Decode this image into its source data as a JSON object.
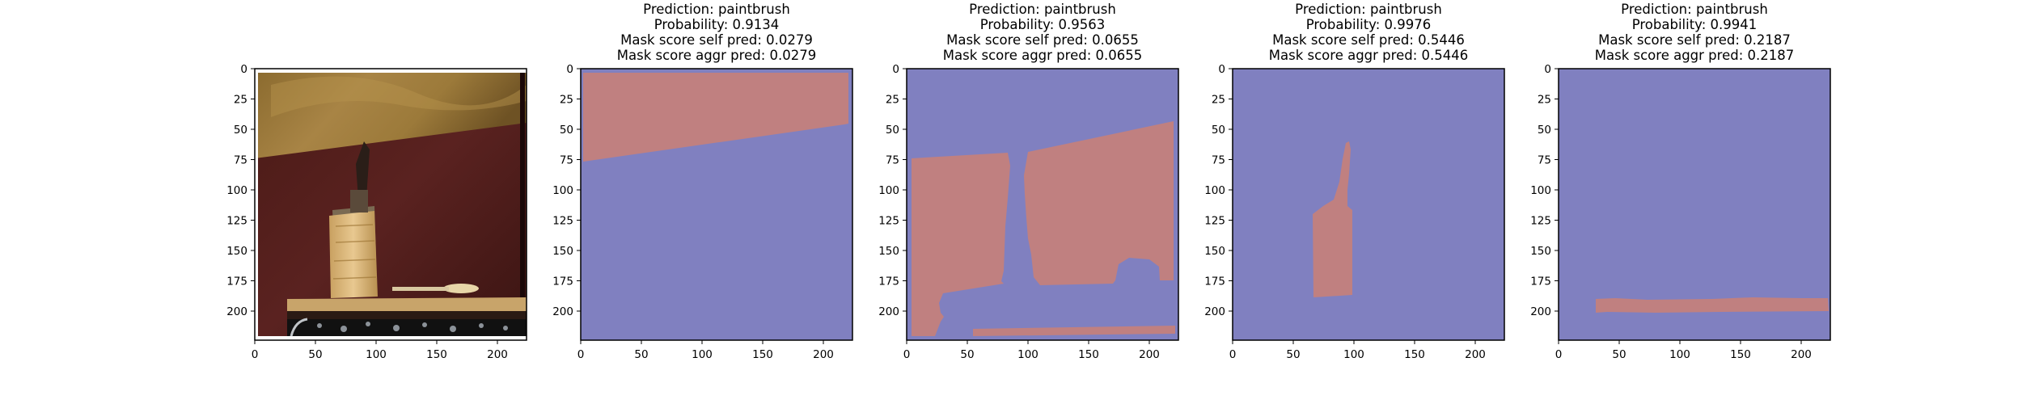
{
  "figure": {
    "panels": [
      {
        "kind": "photo",
        "title_lines": [],
        "x_ticks": [
          "0",
          "50",
          "100",
          "150",
          "200"
        ],
        "y_ticks": [
          "0",
          "25",
          "50",
          "75",
          "100",
          "125",
          "150",
          "175",
          "200"
        ]
      },
      {
        "kind": "mask",
        "title_lines": [
          "Prediction: paintbrush",
          "Probability: 0.9134",
          "Mask score self pred: 0.0279",
          "Mask score aggr pred: 0.0279"
        ],
        "x_ticks": [
          "0",
          "50",
          "100",
          "150",
          "200"
        ],
        "y_ticks": [
          "0",
          "25",
          "50",
          "75",
          "100",
          "125",
          "150",
          "175",
          "200"
        ]
      },
      {
        "kind": "mask",
        "title_lines": [
          "Prediction: paintbrush",
          "Probability: 0.9563",
          "Mask score self pred: 0.0655",
          "Mask score aggr pred: 0.0655"
        ],
        "x_ticks": [
          "0",
          "50",
          "100",
          "150",
          "200"
        ],
        "y_ticks": [
          "0",
          "25",
          "50",
          "75",
          "100",
          "125",
          "150",
          "175",
          "200"
        ]
      },
      {
        "kind": "mask",
        "title_lines": [
          "Prediction: paintbrush",
          "Probability: 0.9976",
          "Mask score self pred: 0.5446",
          "Mask score aggr pred: 0.5446"
        ],
        "x_ticks": [
          "0",
          "50",
          "100",
          "150",
          "200"
        ],
        "y_ticks": [
          "0",
          "25",
          "50",
          "75",
          "100",
          "125",
          "150",
          "175",
          "200"
        ]
      },
      {
        "kind": "mask",
        "title_lines": [
          "Prediction: paintbrush",
          "Probability: 0.9941",
          "Mask score self pred: 0.2187",
          "Mask score aggr pred: 0.2187"
        ],
        "x_ticks": [
          "0",
          "50",
          "100",
          "150",
          "200"
        ],
        "y_ticks": [
          "0",
          "25",
          "50",
          "75",
          "100",
          "125",
          "150",
          "175",
          "200"
        ]
      }
    ],
    "colors": {
      "mask_background": "#8080c0",
      "mask_foreground": "#c08080",
      "axis": "#000000"
    }
  }
}
